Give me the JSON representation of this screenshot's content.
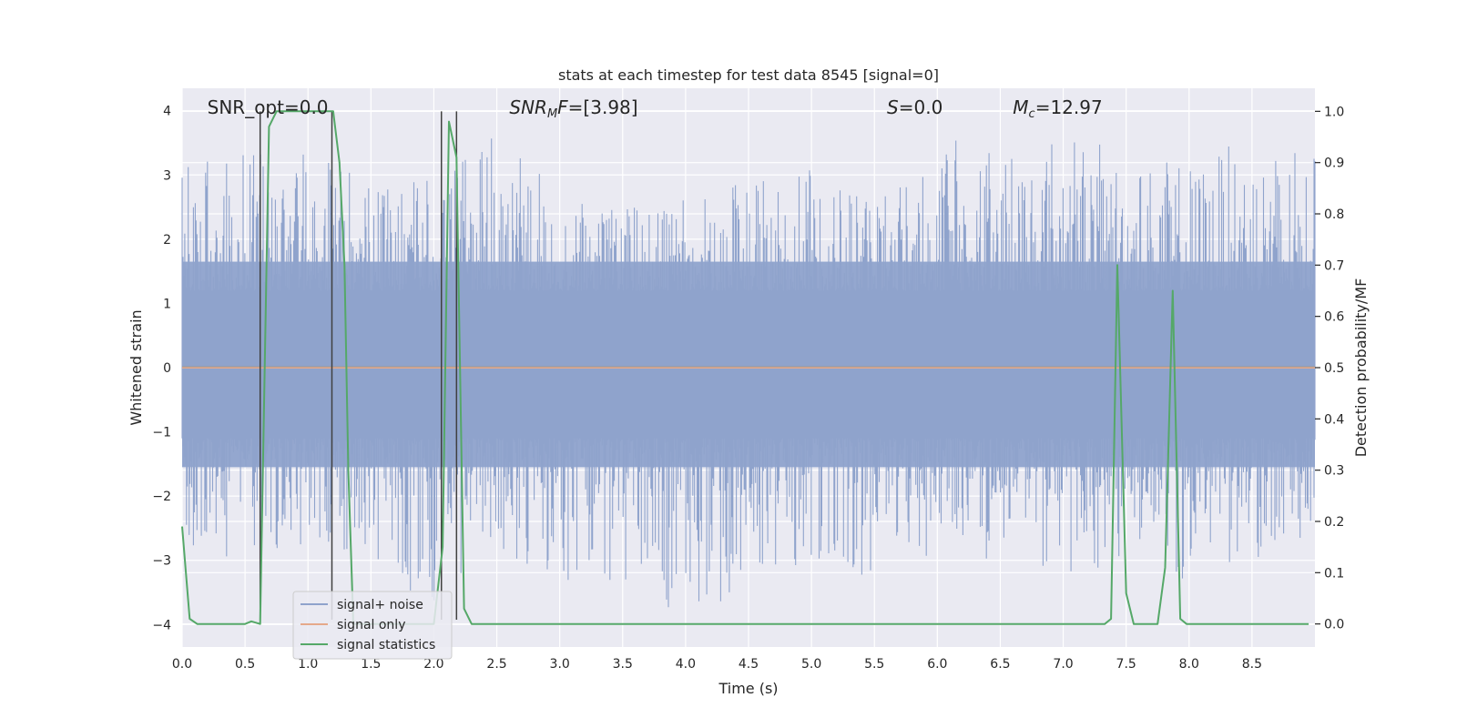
{
  "chart_data": {
    "type": "line",
    "title": "stats at each timestep for test data 8545 [signal=0]",
    "xlabel": "Time (s)",
    "ylabel": "Whitened strain",
    "y2label": "Detection probability/MF",
    "xlim": [
      0,
      9.0
    ],
    "ylim": [
      -4.35,
      4.35
    ],
    "y2lim": [
      -0.045,
      1.045
    ],
    "xticks": [
      0.0,
      0.5,
      1.0,
      1.5,
      2.0,
      2.5,
      3.0,
      3.5,
      4.0,
      4.5,
      5.0,
      5.5,
      6.0,
      6.5,
      7.0,
      7.5,
      8.0,
      8.5
    ],
    "xtick_labels": [
      "0.0",
      "0.5",
      "1.0",
      "1.5",
      "2.0",
      "2.5",
      "3.0",
      "3.5",
      "4.0",
      "4.5",
      "5.0",
      "5.5",
      "6.0",
      "6.5",
      "7.0",
      "7.5",
      "8.0",
      "8.5"
    ],
    "yticks": [
      -4,
      -3,
      -2,
      -1,
      0,
      1,
      2,
      3,
      4
    ],
    "ytick_labels": [
      "−4",
      "−3",
      "−2",
      "−1",
      "0",
      "1",
      "2",
      "3",
      "4"
    ],
    "y2ticks": [
      0.0,
      0.1,
      0.2,
      0.3,
      0.4,
      0.5,
      0.6,
      0.7,
      0.8,
      0.9,
      1.0
    ],
    "y2tick_labels": [
      "0.0",
      "0.1",
      "0.2",
      "0.3",
      "0.4",
      "0.5",
      "0.6",
      "0.7",
      "0.8",
      "0.9",
      "1.0"
    ],
    "grid": true,
    "legend_position": "bottom-left",
    "legend": [
      {
        "label": "signal+ noise",
        "color": "#8fa3cc"
      },
      {
        "label": "signal only",
        "color": "#e5a98a"
      },
      {
        "label": "signal statistics",
        "color": "#55a868"
      }
    ],
    "annotations": [
      {
        "id": "snr-opt",
        "text": "SNR_opt=0.0",
        "x": 0.2
      },
      {
        "id": "snr-mf",
        "text": "SNR_MF=[3.98]",
        "x": 2.6
      },
      {
        "id": "s-value",
        "text": "S=0.0",
        "x": 5.6
      },
      {
        "id": "mc-value",
        "text": "M_c=12.97",
        "x": 6.6
      }
    ],
    "series": [
      {
        "name": "signal+ noise",
        "axis": "left",
        "color": "#8fa3cc",
        "noise_envelope": {
          "x": [
            0.0,
            0.5,
            1.0,
            1.5,
            2.0,
            2.5,
            3.0,
            3.5,
            4.0,
            4.5,
            5.0,
            5.5,
            6.0,
            6.5,
            7.0,
            7.5,
            8.0,
            8.5,
            9.0
          ],
          "upper": [
            3.1,
            3.4,
            3.4,
            2.9,
            3.0,
            3.7,
            2.7,
            2.5,
            2.7,
            3.0,
            3.1,
            2.8,
            3.6,
            3.5,
            3.8,
            3.3,
            3.2,
            3.6,
            3.3
          ],
          "lower": [
            -2.8,
            -3.0,
            -2.9,
            -3.0,
            -3.9,
            -3.0,
            -3.3,
            -3.4,
            -3.9,
            -3.5,
            -3.0,
            -3.3,
            -2.9,
            -3.0,
            -3.3,
            -3.0,
            -3.4,
            -3.0,
            -2.6
          ]
        }
      },
      {
        "name": "signal only",
        "axis": "left",
        "color": "#e5a98a",
        "x": [
          0.0,
          9.0
        ],
        "y": [
          0.0,
          0.0
        ]
      },
      {
        "name": "signal statistics",
        "axis": "right",
        "color": "#55a868",
        "x": [
          0.0,
          0.06,
          0.12,
          0.5,
          0.55,
          0.62,
          0.69,
          0.75,
          1.2,
          1.25,
          1.29,
          1.32,
          1.36,
          2.0,
          2.07,
          2.12,
          2.18,
          2.24,
          2.3,
          7.33,
          7.38,
          7.43,
          7.5,
          7.56,
          7.75,
          7.81,
          7.87,
          7.93,
          7.98,
          8.95
        ],
        "y": [
          0.19,
          0.01,
          0.0,
          0.0,
          0.005,
          0.0,
          0.97,
          1.0,
          1.0,
          0.9,
          0.7,
          0.3,
          0.0,
          0.0,
          0.15,
          0.98,
          0.91,
          0.03,
          0.0,
          0.0,
          0.01,
          0.7,
          0.06,
          0.0,
          0.0,
          0.11,
          0.65,
          0.01,
          0.0,
          0.0
        ]
      }
    ],
    "vertical_markers": [
      0.62,
      1.19,
      2.06,
      2.18
    ],
    "marker_color": "#404040"
  }
}
